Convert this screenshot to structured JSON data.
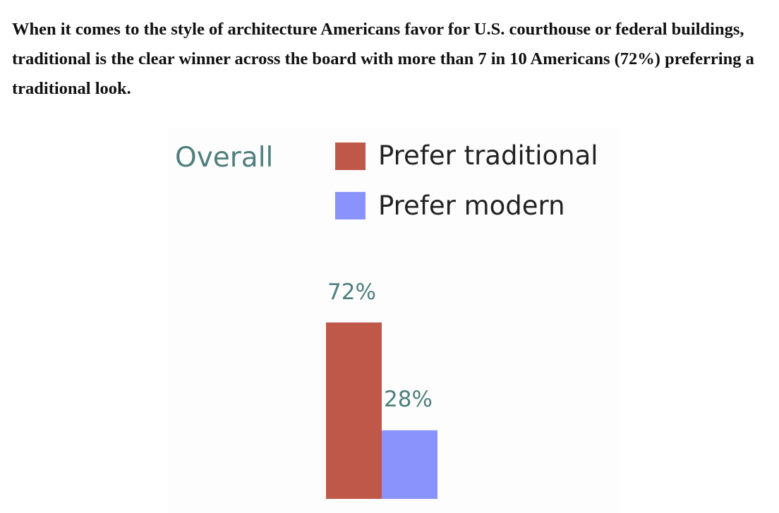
{
  "intro_text": "When it comes to the style of architecture Americans favor for U.S. courthouse or federal buildings, traditional is the clear winner across the board with more than 7 in 10 Americans (72%) preferring a traditional look.",
  "colors": {
    "traditional": "#c0584a",
    "modern": "#8a93fb",
    "label_teal": "#4f7f7d"
  },
  "chart_data": {
    "type": "bar",
    "title": "Overall",
    "categories": [
      "Overall"
    ],
    "series": [
      {
        "name": "Prefer traditional",
        "values": [
          72
        ],
        "data_label": "72%"
      },
      {
        "name": "Prefer modern",
        "values": [
          28
        ],
        "data_label": "28%"
      }
    ],
    "unit": "%",
    "ylim": [
      0,
      80
    ],
    "grid": false,
    "legend_position": "top"
  }
}
